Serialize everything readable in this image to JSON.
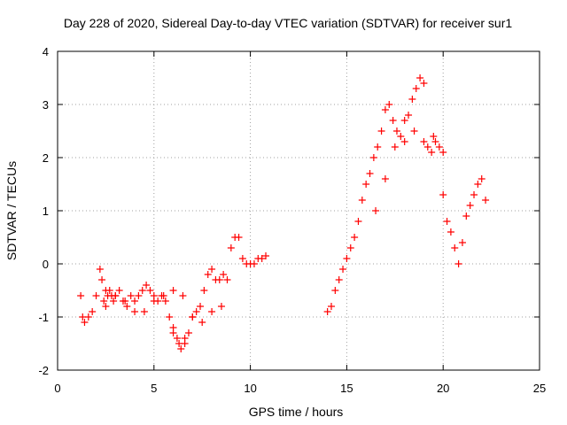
{
  "chart_data": {
    "type": "scatter",
    "title": "Day 228 of 2020, Sidereal Day-to-day VTEC variation (SDTVAR) for receiver sur1",
    "xlabel": "GPS time / hours",
    "ylabel": "SDTVAR / TECUs",
    "xlim": [
      0,
      25
    ],
    "ylim": [
      -2,
      4
    ],
    "xticks": [
      "0",
      "5",
      "10",
      "15",
      "20",
      "25"
    ],
    "yticks": [
      "-2",
      "-1",
      "0",
      "1",
      "2",
      "3",
      "4"
    ],
    "grid": true,
    "marker": "plus",
    "colors": {
      "series": "#ff0000",
      "grid": "#a0a0a0",
      "axes": "#000000"
    },
    "series": [
      {
        "name": "sur1",
        "x": [
          1.2,
          1.3,
          1.4,
          1.6,
          1.8,
          2.0,
          2.2,
          2.3,
          2.4,
          2.5,
          2.6,
          2.7,
          2.8,
          2.9,
          3.0,
          3.2,
          3.4,
          3.6,
          3.8,
          4.0,
          4.2,
          4.4,
          4.6,
          4.8,
          5.0,
          5.2,
          5.4,
          5.6,
          5.8,
          6.0,
          6.2,
          6.4,
          6.6,
          6.8,
          7.0,
          7.2,
          7.4,
          7.6,
          7.8,
          8.0,
          8.2,
          8.4,
          8.6,
          8.8,
          9.0,
          9.2,
          9.4,
          9.6,
          9.8,
          10.0,
          10.2,
          10.4,
          10.6,
          10.8,
          14.0,
          14.2,
          14.4,
          14.6,
          14.8,
          15.0,
          15.2,
          15.4,
          15.6,
          15.8,
          16.0,
          16.2,
          16.4,
          16.6,
          16.8,
          17.0,
          17.2,
          17.4,
          17.6,
          17.8,
          18.0,
          18.2,
          18.4,
          18.6,
          18.8,
          19.0,
          19.2,
          19.4,
          19.6,
          19.8,
          20.0,
          20.2,
          20.4,
          20.6,
          20.8,
          21.0,
          21.2,
          21.4,
          21.6,
          21.8,
          22.0,
          22.2,
          2.5,
          3.0,
          3.5,
          4.0,
          4.5,
          5.0,
          5.5,
          6.0,
          6.5,
          7.0,
          7.5,
          8.0,
          8.5,
          6.0,
          6.3,
          6.6,
          16.5,
          17.0,
          17.5,
          18.0,
          18.5,
          19.0,
          19.5,
          20.0
        ],
        "y": [
          -0.6,
          -1.0,
          -1.1,
          -1.0,
          -0.9,
          -0.6,
          -0.1,
          -0.3,
          -0.7,
          -0.8,
          -0.6,
          -0.5,
          -0.6,
          -0.7,
          -0.6,
          -0.5,
          -0.7,
          -0.8,
          -0.6,
          -0.9,
          -0.6,
          -0.5,
          -0.4,
          -0.5,
          -0.6,
          -0.7,
          -0.6,
          -0.7,
          -1.0,
          -1.2,
          -1.4,
          -1.6,
          -1.5,
          -1.3,
          -1.0,
          -0.9,
          -0.8,
          -0.5,
          -0.2,
          -0.1,
          -0.3,
          -0.3,
          -0.2,
          -0.3,
          0.3,
          0.5,
          0.5,
          0.1,
          0.0,
          0.0,
          0.0,
          0.1,
          0.1,
          0.15,
          -0.9,
          -0.8,
          -0.5,
          -0.3,
          -0.1,
          0.1,
          0.3,
          0.5,
          0.8,
          1.2,
          1.5,
          1.7,
          2.0,
          2.2,
          2.5,
          2.9,
          3.0,
          2.7,
          2.5,
          2.4,
          2.3,
          2.8,
          3.1,
          3.3,
          3.5,
          3.4,
          2.2,
          2.1,
          2.3,
          2.2,
          1.3,
          0.8,
          0.6,
          0.3,
          0.0,
          0.4,
          0.9,
          1.1,
          1.3,
          1.5,
          1.6,
          1.2,
          -0.5,
          -0.6,
          -0.7,
          -0.7,
          -0.9,
          -0.7,
          -0.6,
          -0.5,
          -0.6,
          -1.0,
          -1.1,
          -0.9,
          -0.8,
          -1.3,
          -1.5,
          -1.4,
          1.0,
          1.6,
          2.2,
          2.7,
          2.5,
          2.3,
          2.4,
          2.1
        ]
      }
    ]
  }
}
